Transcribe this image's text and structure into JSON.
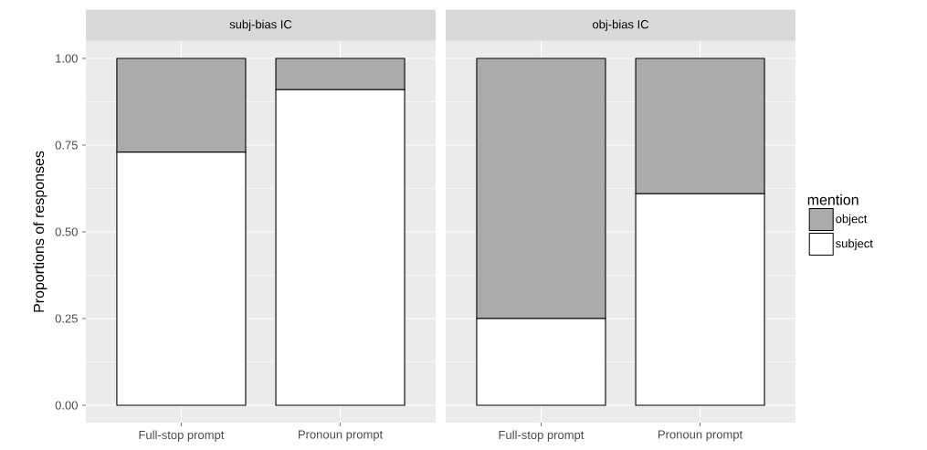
{
  "chart_data": [
    {
      "type": "bar",
      "title": "subj-bias IC",
      "ylabel": "Proportions of responses",
      "categories": [
        "Full-stop prompt",
        "Pronoun prompt"
      ],
      "stacked": true,
      "grid": true,
      "series": [
        {
          "color": "#ffffff",
          "values": [
            0.73,
            0.91
          ]
        },
        {
          "color": "#ababab",
          "values": [
            0.27,
            0.09
          ]
        }
      ],
      "ylim": [
        -0.05,
        1.05
      ],
      "yticks": [
        {
          "value": 0,
          "label": "0.00"
        },
        {
          "value": 0.25,
          "label": "0.25"
        },
        {
          "value": 0.5,
          "label": "0.50"
        },
        {
          "value": 0.75,
          "label": "0.75"
        },
        {
          "value": 1,
          "label": "1.00"
        }
      ]
    },
    {
      "type": "bar",
      "title": "obj-bias IC",
      "legend_title": "mention",
      "legend": "right",
      "tick_labels": "x",
      "categories": [
        "Full-stop prompt",
        "Pronoun prompt"
      ],
      "stacked": true,
      "grid": true,
      "series": [
        {
          "name": "subject",
          "color": "#ffffff",
          "values": [
            0.25,
            0.61
          ]
        },
        {
          "name": "object",
          "color": "#ababab",
          "values": [
            0.75,
            0.39
          ]
        }
      ],
      "ylim": [
        -0.05,
        1.05
      ],
      "yticks": [
        {
          "value": 0,
          "label": null
        },
        {
          "value": 0.25,
          "label": null
        },
        {
          "value": 0.5,
          "label": null
        },
        {
          "value": 0.75,
          "label": null
        },
        {
          "value": 1,
          "label": null
        }
      ]
    }
  ]
}
